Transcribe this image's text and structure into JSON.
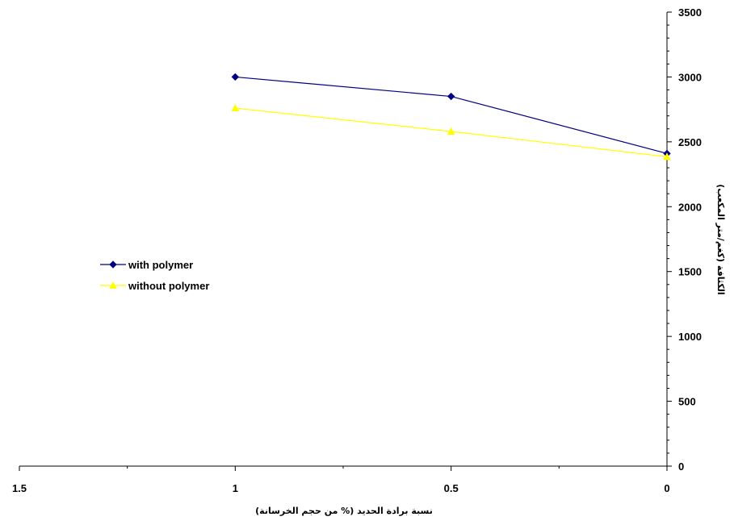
{
  "chart_data": {
    "type": "line",
    "x_axis": {
      "reversed": true,
      "range": [
        0,
        1.5
      ],
      "ticks": [
        1.5,
        1,
        0.5,
        0
      ],
      "tick_labels": [
        "1.5",
        "1",
        "0.5",
        "0"
      ],
      "label": "نسبة برادة الحديد (% من حجم الخرسانة)"
    },
    "y_axis": {
      "position": "right",
      "range": [
        0,
        3500
      ],
      "ticks": [
        0,
        500,
        1000,
        1500,
        2000,
        2500,
        3000,
        3500
      ],
      "tick_labels": [
        "0",
        "500",
        "1000",
        "1500",
        "2000",
        "2500",
        "3000",
        "3500"
      ],
      "label": "الكثافة (كغم/متر المكعب)"
    },
    "grid": false,
    "legend_position": "left",
    "series": [
      {
        "name": "with polymer",
        "color": "#000080",
        "marker": "diamond",
        "x": [
          1,
          0.5,
          0
        ],
        "y": [
          3000,
          2850,
          2410
        ]
      },
      {
        "name": "without polymer",
        "color": "#FFFF00",
        "marker": "triangle",
        "x": [
          1,
          0.5,
          0
        ],
        "y": [
          2760,
          2580,
          2385
        ]
      }
    ]
  }
}
